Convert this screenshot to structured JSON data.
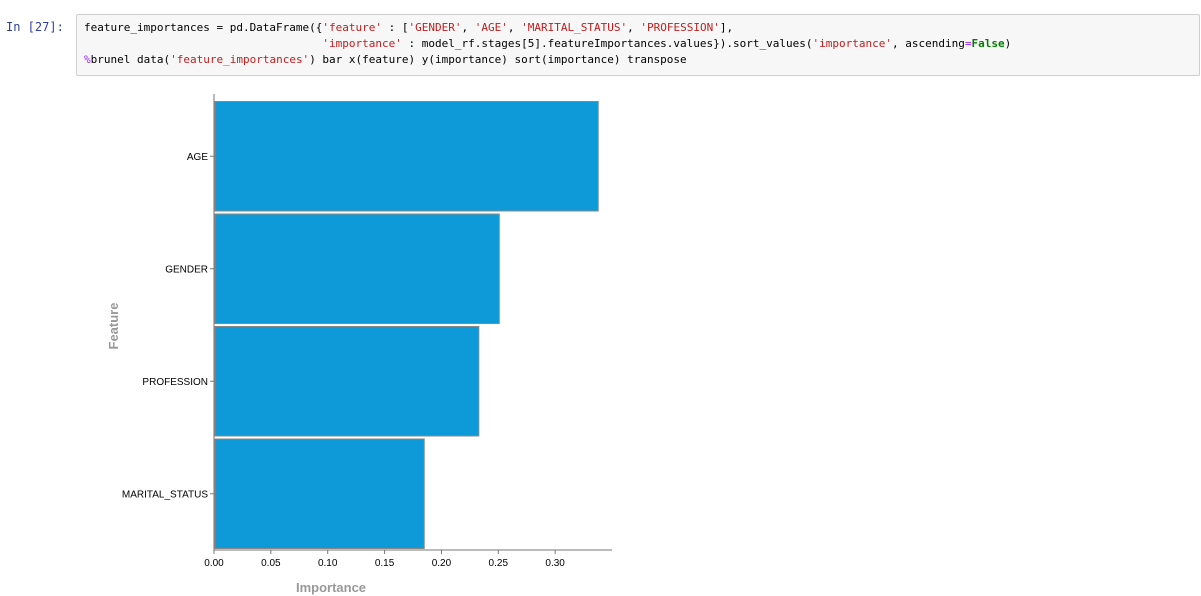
{
  "cell": {
    "prompt": "In [27]:",
    "code_line1_a": "feature_importances = pd.DataFrame({",
    "code_line1_b": "'feature'",
    "code_line1_c": " : [",
    "code_line1_d": "'GENDER'",
    "code_line1_e": ", ",
    "code_line1_f": "'AGE'",
    "code_line1_g": ", ",
    "code_line1_h": "'MARITAL_STATUS'",
    "code_line1_i": ", ",
    "code_line1_j": "'PROFESSION'",
    "code_line1_k": "],",
    "code_line2_indent": "                                    ",
    "code_line2_a": "'importance'",
    "code_line2_b": " : model_rf.stages[5].featureImportances.values}).sort_values(",
    "code_line2_c": "'importance'",
    "code_line2_d": ", ascending",
    "code_line2_e": "=",
    "code_line2_f": "False",
    "code_line2_g": ")",
    "code_line3_a": "%",
    "code_line3_b": "brunel data(",
    "code_line3_c": "'feature_importances'",
    "code_line3_d": ") bar x(feature) y(importance) sort(importance) transpose"
  },
  "chart_data": {
    "type": "bar",
    "orientation": "horizontal",
    "categories": [
      "AGE",
      "GENDER",
      "PROFESSION",
      "MARITAL_STATUS"
    ],
    "values": [
      0.337,
      0.25,
      0.232,
      0.184
    ],
    "xlabel": "Importance",
    "ylabel": "Feature",
    "xlim": [
      0,
      0.35
    ],
    "xticks": [
      "0.00",
      "0.05",
      "0.10",
      "0.15",
      "0.20",
      "0.25",
      "0.30"
    ],
    "bar_color": "#0e9ad8",
    "grid": false
  }
}
